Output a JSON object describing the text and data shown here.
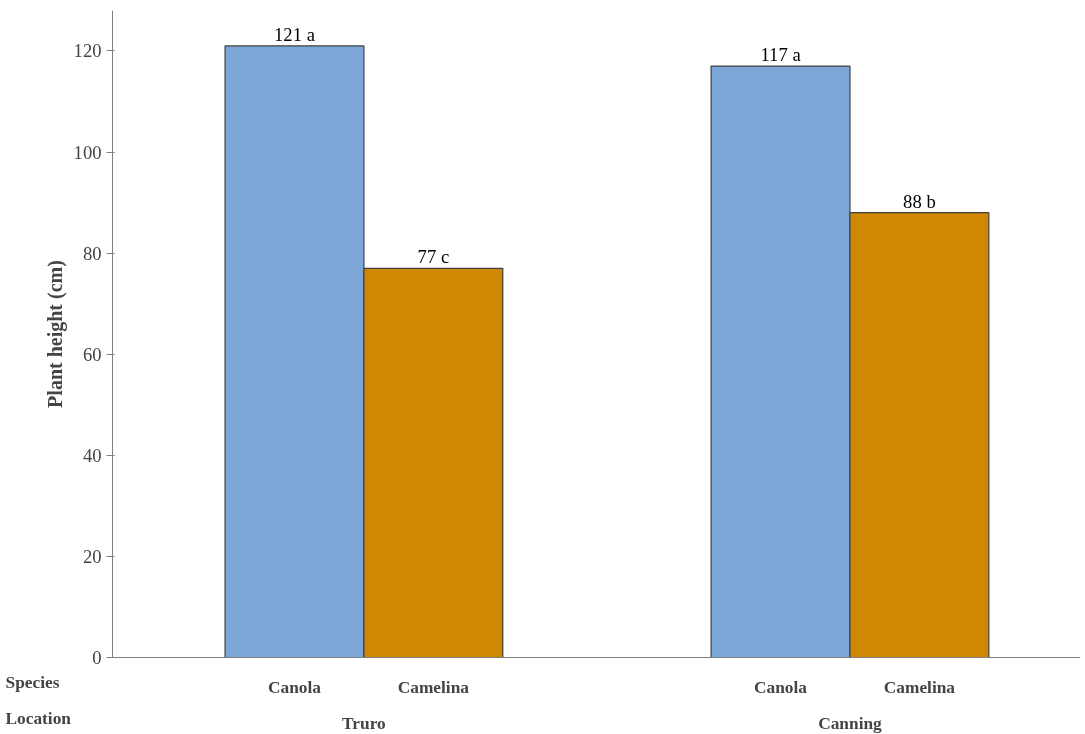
{
  "chart_data": {
    "type": "bar",
    "ylabel": "Plant height (cm)",
    "categories": [
      "Truro",
      "Canning"
    ],
    "series": [
      {
        "name": "Canola",
        "color": "#7ca6d8",
        "values": [
          121,
          117
        ],
        "value_labels": [
          "121 a",
          "117 a"
        ]
      },
      {
        "name": "Camelina",
        "color": "#d08702",
        "values": [
          77,
          88
        ],
        "value_labels": [
          "77 c",
          "88 b"
        ]
      }
    ],
    "annotations": [
      "Species",
      "Location"
    ],
    "ylim": [
      0,
      128
    ],
    "yticks": [
      0,
      20,
      40,
      60,
      80,
      100,
      120
    ],
    "grid": false
  }
}
